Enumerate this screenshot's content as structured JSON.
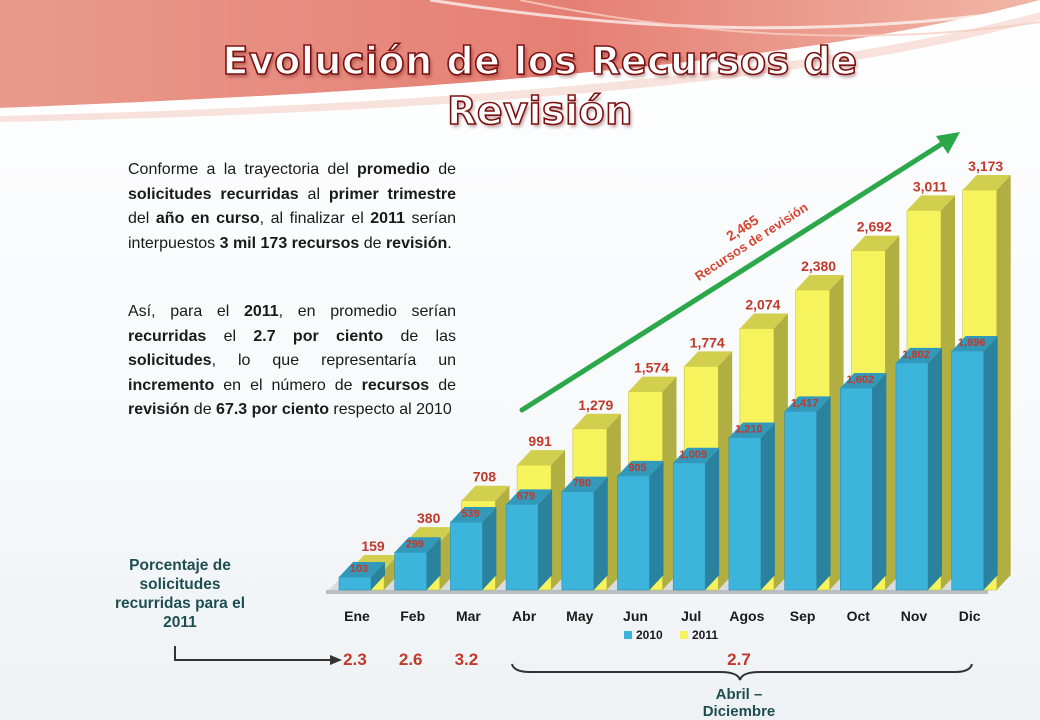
{
  "title": "Evolución de los Recursos  de Revisión",
  "paragraph1": [
    {
      "t": "Conforme a la trayectoria del ",
      "b": false
    },
    {
      "t": "promedio",
      "b": true
    },
    {
      "t": " de ",
      "b": false
    },
    {
      "t": "solicitudes recurridas",
      "b": true
    },
    {
      "t": " al ",
      "b": false
    },
    {
      "t": "primer trimestre",
      "b": true
    },
    {
      "t": " del ",
      "b": false
    },
    {
      "t": "año en curso",
      "b": true
    },
    {
      "t": ", al finalizar el ",
      "b": false
    },
    {
      "t": "2011",
      "b": true
    },
    {
      "t": " serían interpuestos ",
      "b": false
    },
    {
      "t": "3 mil 173 recursos",
      "b": true
    },
    {
      "t": " de ",
      "b": false
    },
    {
      "t": "revisión",
      "b": true
    },
    {
      "t": ".",
      "b": false
    }
  ],
  "paragraph2": [
    {
      "t": "Así, para el ",
      "b": false
    },
    {
      "t": "2011",
      "b": true
    },
    {
      "t": ", en promedio serían ",
      "b": false
    },
    {
      "t": "recurridas",
      "b": true
    },
    {
      "t": " el ",
      "b": false
    },
    {
      "t": "2.7 por ciento",
      "b": true
    },
    {
      "t": " de las ",
      "b": false
    },
    {
      "t": "solicitudes",
      "b": true
    },
    {
      "t": ", lo que representaría un ",
      "b": false
    },
    {
      "t": "incremento",
      "b": true
    },
    {
      "t": " en el número de ",
      "b": false
    },
    {
      "t": "recursos",
      "b": true
    },
    {
      "t": " de ",
      "b": false
    },
    {
      "t": "revisión",
      "b": true
    },
    {
      "t": " de ",
      "b": false
    },
    {
      "t": "67.3 por ciento",
      "b": true
    },
    {
      "t": " respecto al 2010",
      "b": false
    }
  ],
  "chart_data": {
    "type": "bar",
    "categories": [
      "Ene",
      "Feb",
      "Mar",
      "Abr",
      "May",
      "Jun",
      "Jul",
      "Agos",
      "Sep",
      "Oct",
      "Nov",
      "Dic"
    ],
    "series": [
      {
        "name": "2010",
        "values": [
          103,
          299,
          539,
          679,
          780,
          905,
          1009,
          1210,
          1417,
          1602,
          1802,
          1896
        ],
        "labels": [
          "103",
          "299",
          "539",
          "679",
          "780",
          "905",
          "1,009",
          "1,210",
          "1,417",
          "1,602",
          "1,802",
          "1,896"
        ],
        "color": "#3cb4dc"
      },
      {
        "name": "2011",
        "values": [
          159,
          380,
          708,
          991,
          1279,
          1574,
          1774,
          2074,
          2380,
          2692,
          3011,
          3173
        ],
        "labels": [
          "159",
          "380",
          "708",
          "991",
          "1,279",
          "1,574",
          "1,774",
          "2,074",
          "2,380",
          "2,692",
          "3,011",
          "3,173"
        ],
        "color": "#f7f35c"
      }
    ],
    "ylim": [
      0,
      3173
    ],
    "legend_position": "bottom",
    "annotation": {
      "value": "2,465",
      "text": "Recursos de revisión",
      "arrow_color": "#2ca84a"
    }
  },
  "percent": {
    "label": "Porcentaje de solicitudes recurridas para el 2011",
    "values": [
      {
        "month": "Ene",
        "text": "2.3"
      },
      {
        "month": "Feb",
        "text": "2.6"
      },
      {
        "month": "Mar",
        "text": "3.2"
      }
    ],
    "range_value": "2.7",
    "range_label": "Abril – Diciembre"
  },
  "colors": {
    "title_outline": "#7b1010",
    "value_labels": "#c0392b",
    "banner": "#e8877a",
    "axis_labels": "#1a1a1a"
  }
}
